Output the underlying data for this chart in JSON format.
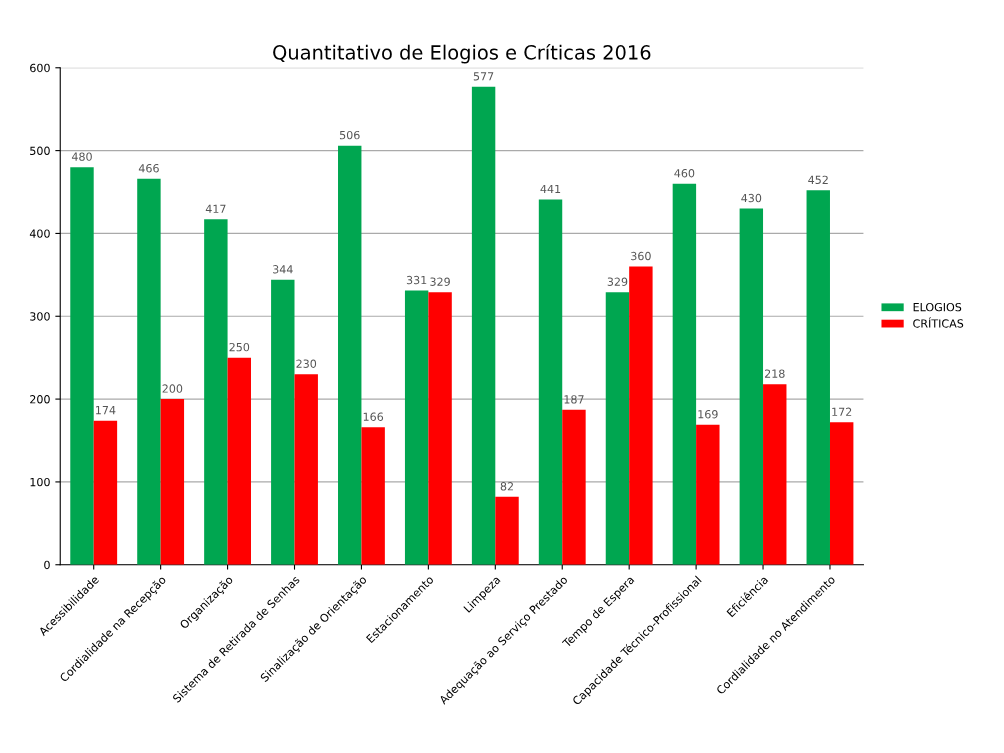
{
  "chart_data": {
    "type": "bar",
    "title": "Quantitativo de Elogios e Críticas 2016",
    "categories": [
      "Acessibilidade",
      "Cordialidade na Recepção",
      "Organização",
      "Sistema de Retirada de Senhas",
      "Sinalização de Orientação",
      "Estacionamento",
      "Limpeza",
      "Adequação ao Serviço Prestado",
      "Tempo de Espera",
      "Capacidade Técnico-Profissional",
      "Eficiência",
      "Cordialidade no Atendimento"
    ],
    "series": [
      {
        "name": "ELOGIOS",
        "color": "#00a650",
        "values": [
          480,
          466,
          417,
          344,
          506,
          331,
          577,
          441,
          329,
          460,
          430,
          452
        ]
      },
      {
        "name": "CRÍTICAS",
        "color": "#ff0000",
        "values": [
          174,
          200,
          250,
          230,
          166,
          329,
          82,
          187,
          360,
          169,
          218,
          172
        ]
      }
    ],
    "ylim": [
      0,
      600
    ],
    "yticks": [
      0,
      100,
      200,
      300,
      400,
      500,
      600
    ],
    "grid": "y",
    "legend": "right",
    "data_labels": true
  }
}
